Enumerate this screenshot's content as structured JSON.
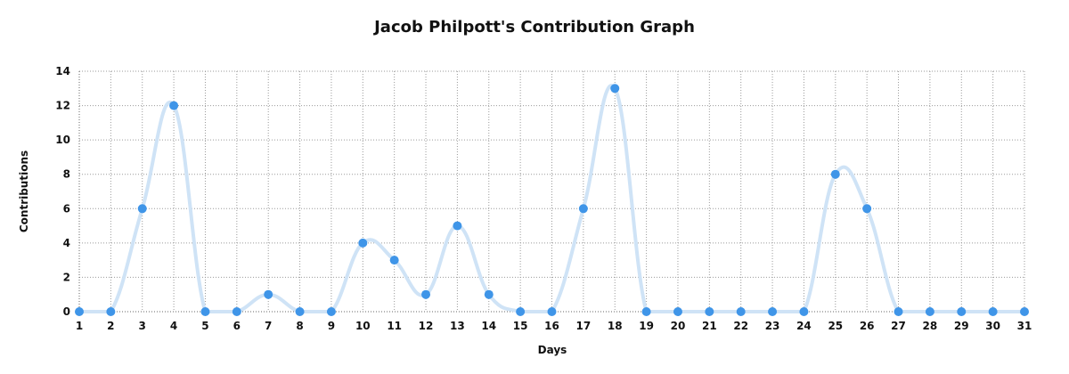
{
  "chart_data": {
    "type": "line",
    "title": "Jacob Philpott's Contribution Graph",
    "xlabel": "Days",
    "ylabel": "Contributions",
    "x": [
      1,
      2,
      3,
      4,
      5,
      6,
      7,
      8,
      9,
      10,
      11,
      12,
      13,
      14,
      15,
      16,
      17,
      18,
      19,
      20,
      21,
      22,
      23,
      24,
      25,
      26,
      27,
      28,
      29,
      30,
      31
    ],
    "series": [
      {
        "values": [
          0,
          0,
          6,
          12,
          0,
          0,
          1,
          0,
          0,
          4,
          3,
          1,
          5,
          1,
          0,
          0,
          6,
          13,
          0,
          0,
          0,
          0,
          0,
          0,
          8,
          6,
          0,
          0,
          0,
          0,
          0
        ]
      }
    ],
    "ylim": [
      0,
      14
    ],
    "yticks": [
      0,
      2,
      4,
      6,
      8,
      10,
      12,
      14
    ],
    "grid": true,
    "smooth": true,
    "colors": {
      "line": "#cfe3f6",
      "points": "#3f95e8"
    }
  }
}
